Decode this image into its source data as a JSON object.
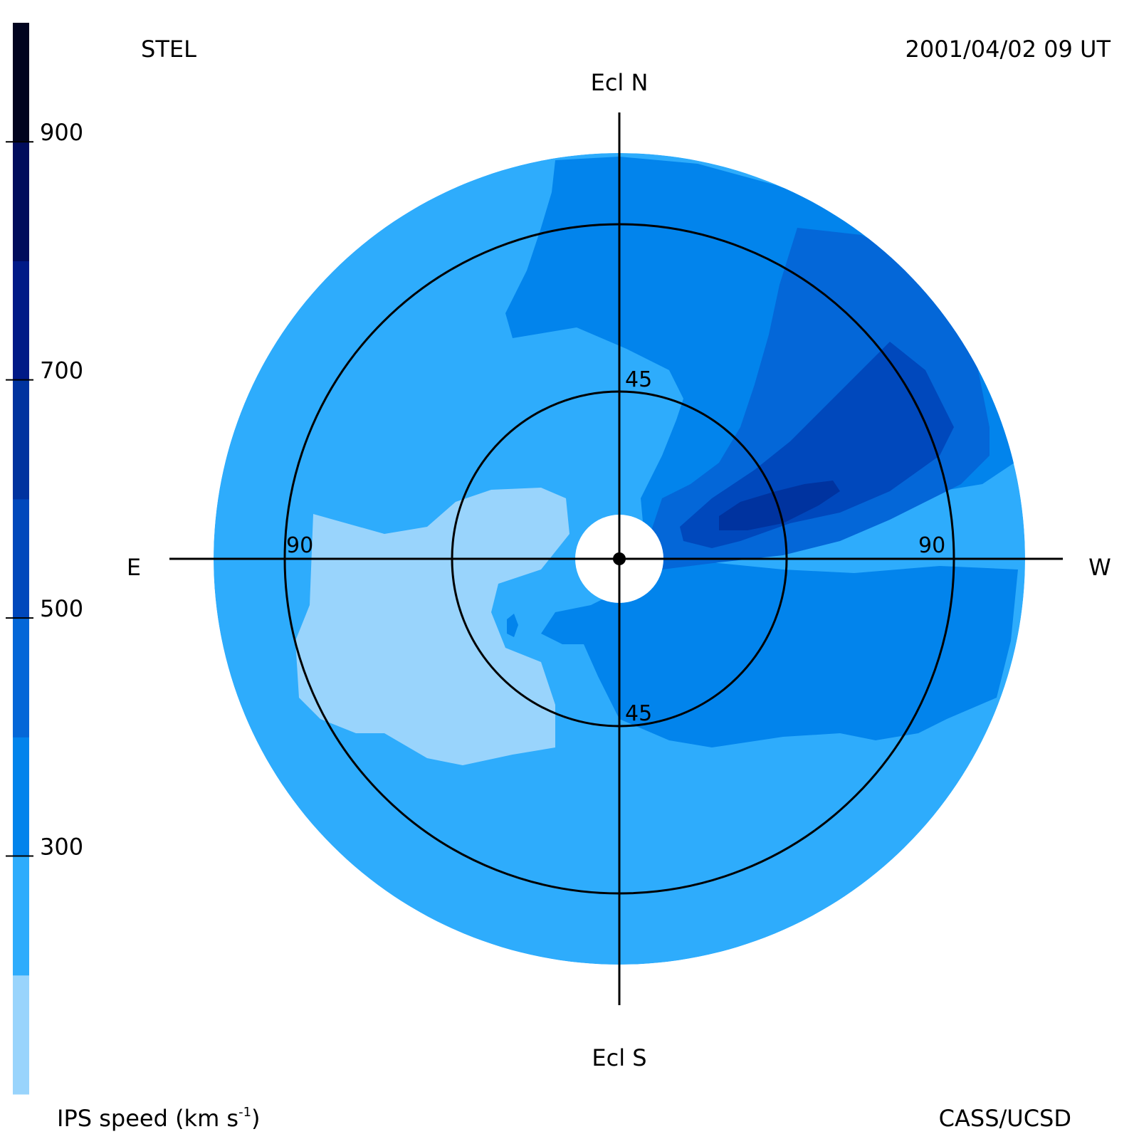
{
  "header": {
    "observatory": "STEL",
    "timestamp": "2001/04/02 09 UT"
  },
  "footer": {
    "colorbar_label": "IPS speed (km s",
    "colorbar_label_exp": "-1",
    "colorbar_label_close": ")",
    "credit": "CASS/UCSD"
  },
  "chart_data": {
    "type": "heatmap",
    "projection": "sky map centered on the Sun, elongation rings",
    "direction_labels": {
      "north": "Ecl N",
      "south": "Ecl S",
      "east": "E",
      "west": "W"
    },
    "elongation_rings": [
      {
        "value": 45,
        "labels": [
          "45",
          "45"
        ]
      },
      {
        "value": 90,
        "labels": [
          "90",
          "90"
        ]
      }
    ],
    "outer_extent_deg": 112,
    "sun_occulted_deg": 12,
    "colorbar": {
      "ticks": [
        {
          "value": 300,
          "label": "300"
        },
        {
          "value": 500,
          "label": "500"
        },
        {
          "value": 700,
          "label": "700"
        },
        {
          "value": 900,
          "label": "900"
        }
      ],
      "range": [
        100,
        1000
      ],
      "levels": [
        {
          "from": 100,
          "to": 200,
          "color": "#99d4fc"
        },
        {
          "from": 200,
          "to": 300,
          "color": "#2eacfc"
        },
        {
          "from": 300,
          "to": 400,
          "color": "#0284ec"
        },
        {
          "from": 400,
          "to": 500,
          "color": "#0467d8"
        },
        {
          "from": 500,
          "to": 600,
          "color": "#0048bc"
        },
        {
          "from": 600,
          "to": 700,
          "color": "#00339f"
        },
        {
          "from": 700,
          "to": 800,
          "color": "#001a87"
        },
        {
          "from": 800,
          "to": 900,
          "color": "#000c5c"
        },
        {
          "from": 900,
          "to": 1000,
          "color": "#01041f"
        }
      ]
    },
    "background_speed": 250,
    "regions": [
      {
        "name": "slow-region-east",
        "speed": 150
      },
      {
        "name": "moderate-region-north-west",
        "speed": 350
      },
      {
        "name": "moderate-region-south-west",
        "speed": 350
      },
      {
        "name": "fast-region-west",
        "speed": 450
      },
      {
        "name": "fast-core-west",
        "speed": 550
      },
      {
        "name": "fastest-core-west",
        "speed": 650
      },
      {
        "name": "moderate-blob-east",
        "speed": 350
      }
    ]
  }
}
